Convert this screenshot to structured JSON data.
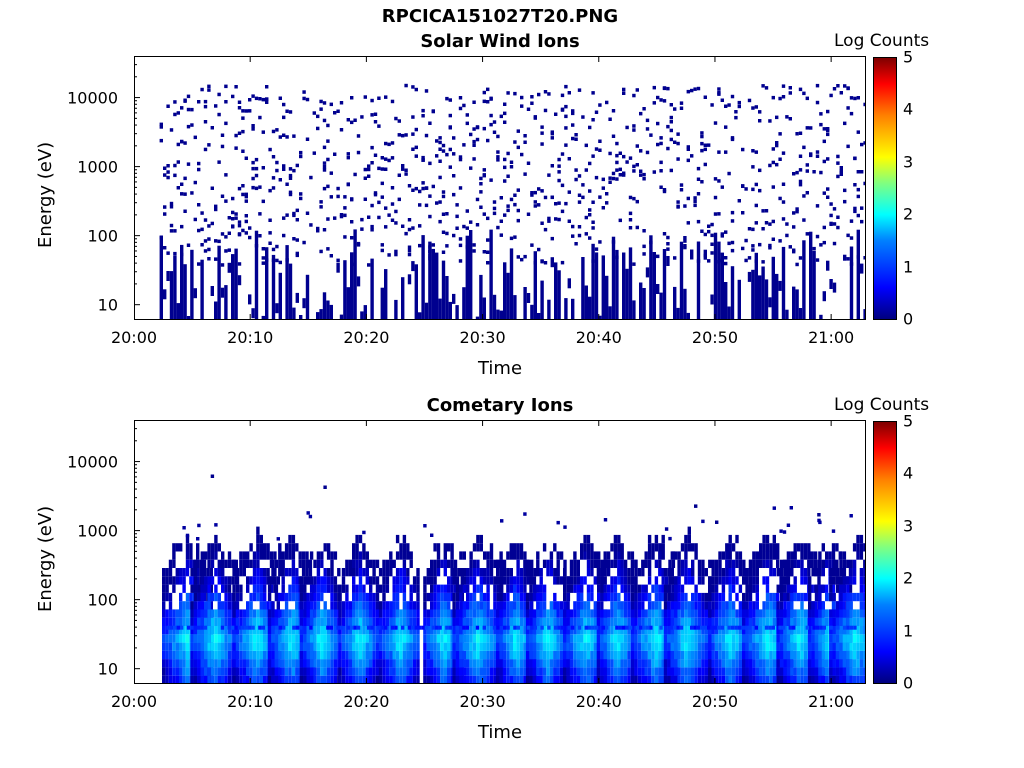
{
  "figure_title": "RPCICA151027T20.PNG",
  "chart_data": [
    {
      "type": "heatmap",
      "title": "Solar Wind Ions",
      "xlabel": "Time",
      "ylabel": "Energy (eV)",
      "x_ticks": [
        "20:00",
        "20:10",
        "20:20",
        "20:30",
        "20:40",
        "20:50",
        "21:00"
      ],
      "y_ticks": [
        "10",
        "100",
        "1000",
        "10000"
      ],
      "y_scale": "log",
      "xlim": [
        "20:00",
        "21:03"
      ],
      "ylim": [
        6,
        40000
      ],
      "colorbar_label": "Log Counts",
      "colorbar_ticks": [
        "0",
        "1",
        "2",
        "3",
        "4",
        "5"
      ],
      "colorbar_range": [
        0,
        5
      ],
      "colormap": "jet",
      "data_start": "20:02",
      "data_end": "21:03",
      "description_levels": "sparse low counts (log ~0) scattered across 6 eV - 20 keV"
    },
    {
      "type": "heatmap",
      "title": "Cometary Ions",
      "xlabel": "Time",
      "ylabel": "Energy (eV)",
      "x_ticks": [
        "20:00",
        "20:10",
        "20:20",
        "20:30",
        "20:40",
        "20:50",
        "21:00"
      ],
      "y_ticks": [
        "10",
        "100",
        "1000",
        "10000"
      ],
      "y_scale": "log",
      "xlim": [
        "20:00",
        "21:03"
      ],
      "ylim": [
        6,
        40000
      ],
      "colorbar_label": "Log Counts",
      "colorbar_ticks": [
        "0",
        "1",
        "2",
        "3",
        "4",
        "5"
      ],
      "colorbar_range": [
        0,
        5
      ],
      "colormap": "jet",
      "burst_times_min": [
        4.5,
        6.8,
        10.5,
        13.5,
        16.0,
        19.3,
        22.8,
        26.5,
        29.5,
        32.8,
        35.5,
        38.8,
        41.5,
        44.8,
        47.5,
        51.2,
        54.5,
        57.2,
        59.8,
        62.0
      ],
      "peak_log_counts": 1.9
    }
  ]
}
